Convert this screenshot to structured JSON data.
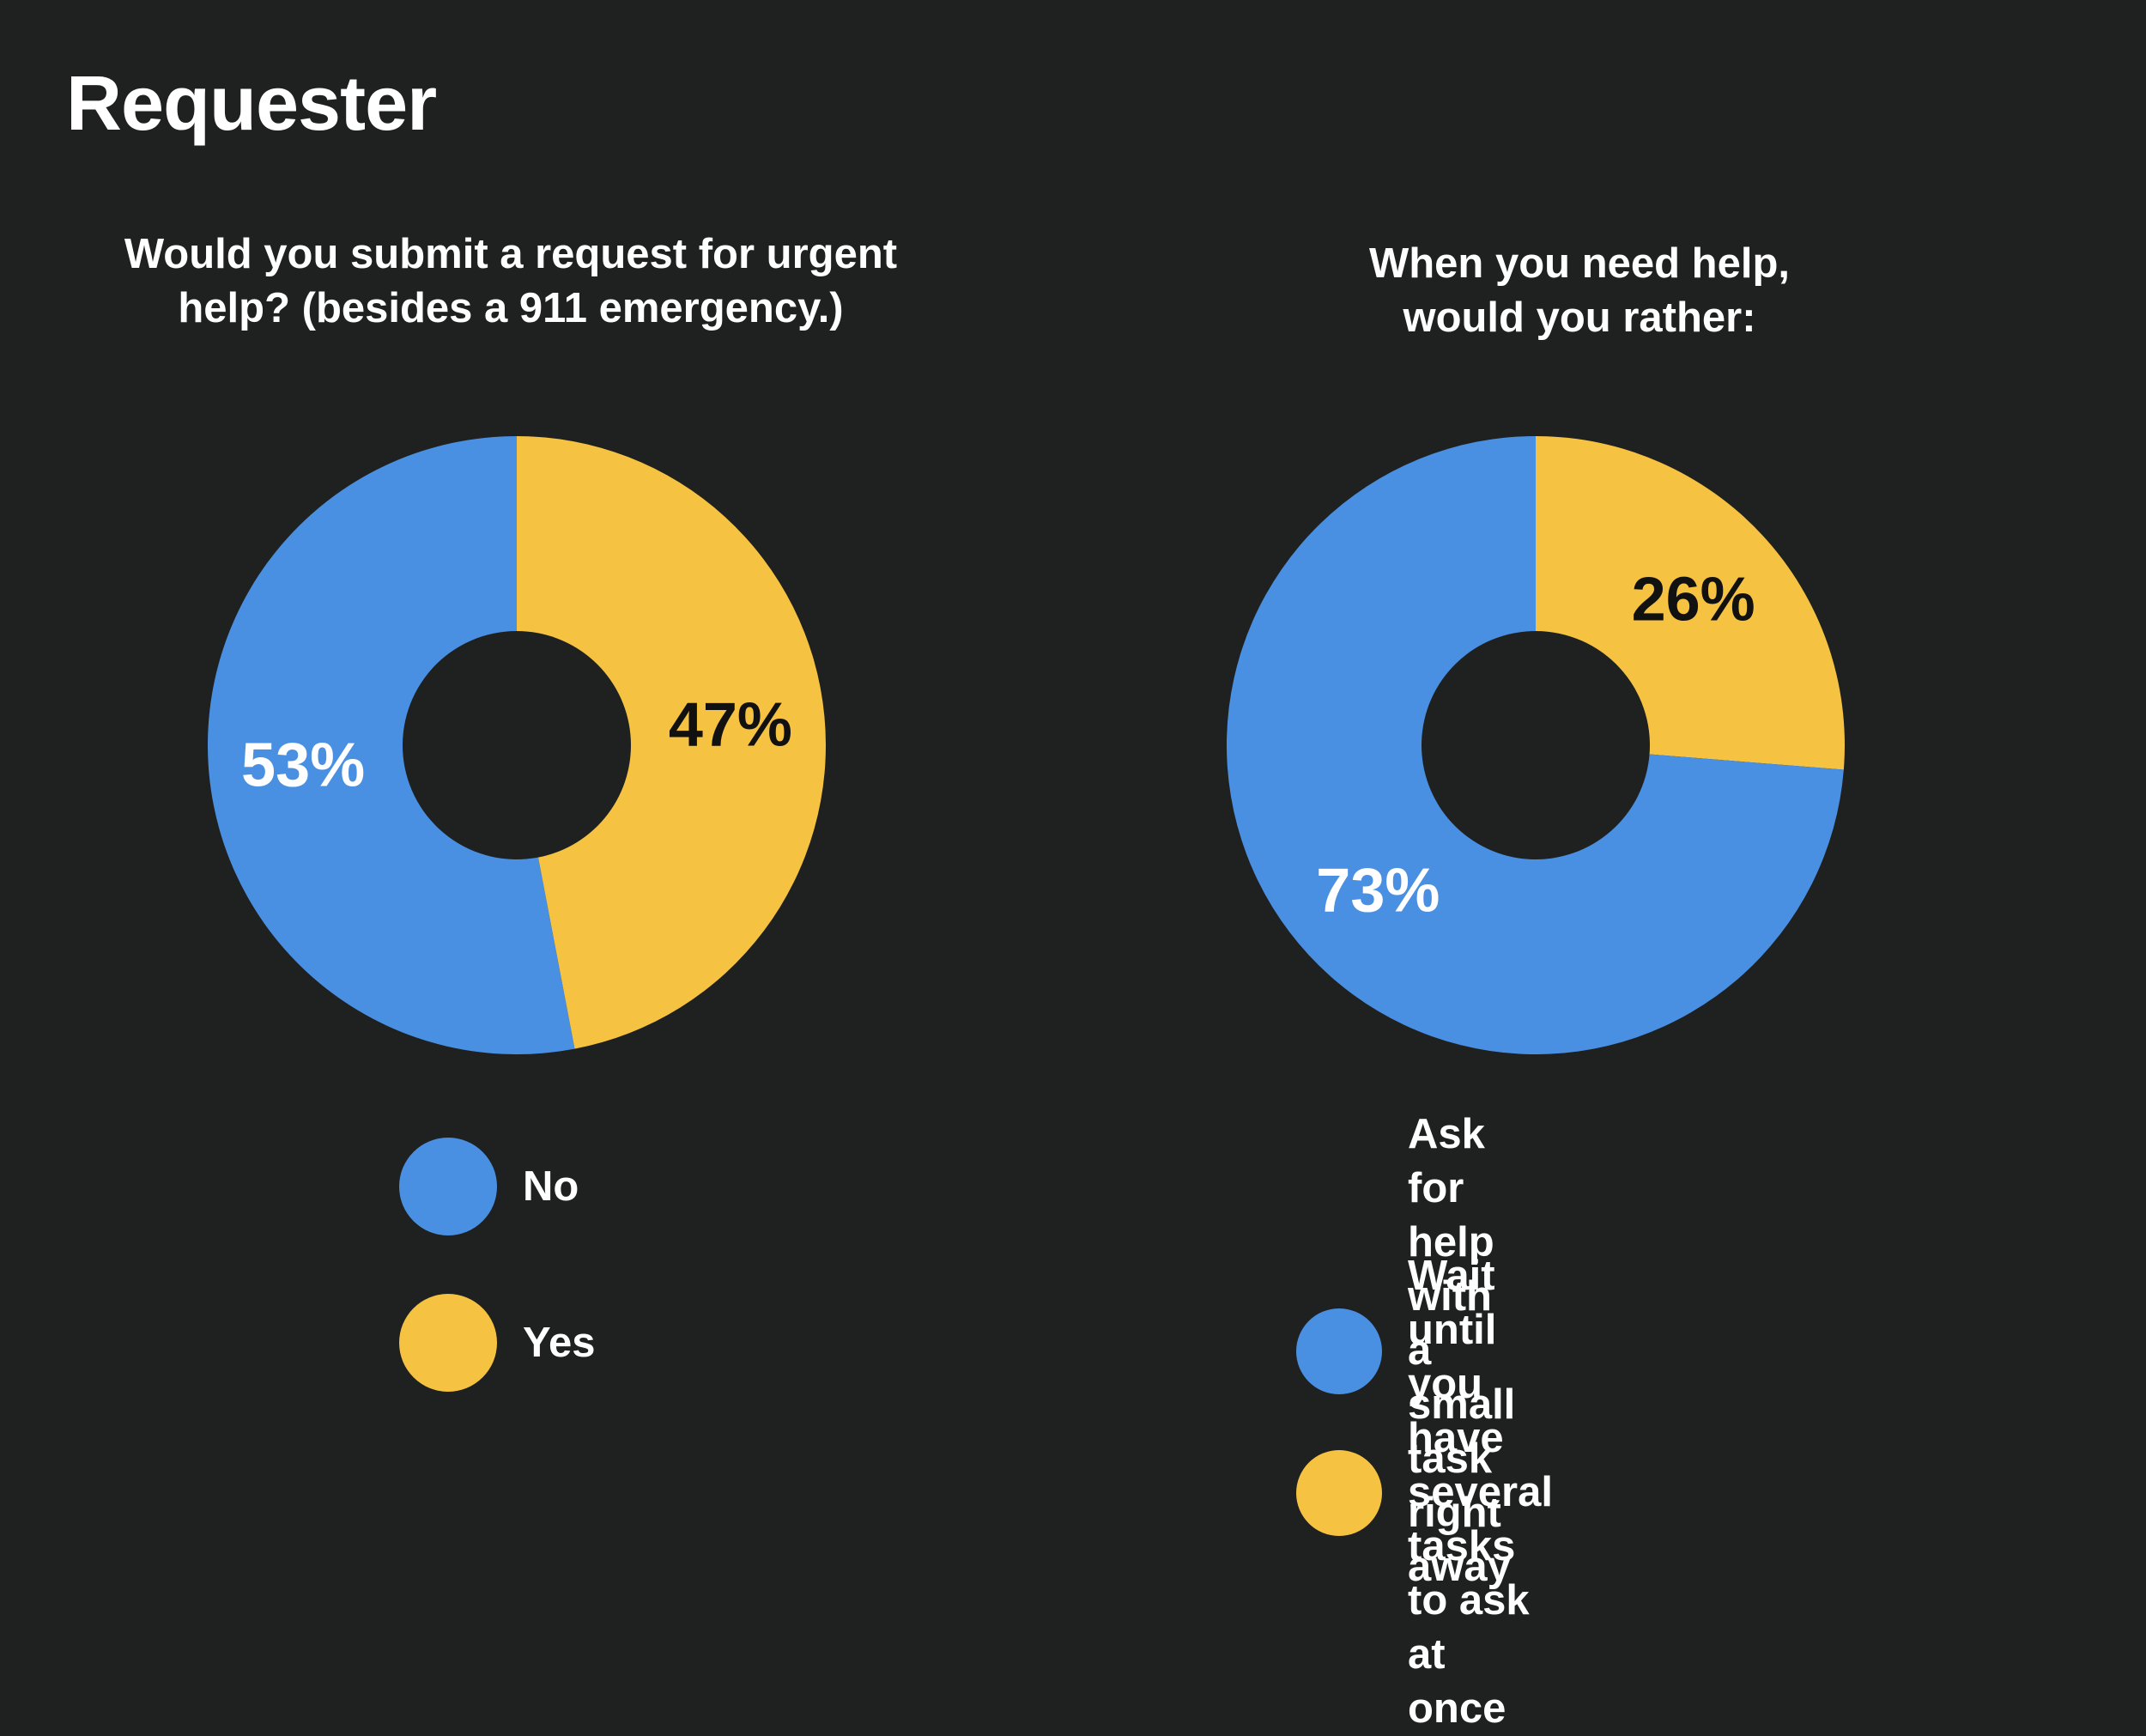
{
  "page": {
    "title": "Requester"
  },
  "colors": {
    "background": "#1f2020",
    "blue": "#4a90e2",
    "yellow": "#f5c242"
  },
  "chart_data": [
    {
      "type": "pie",
      "title": "Would you submit a request for urgent\nhelp? (besides a 911 emergency.)",
      "slices": [
        {
          "label": "Yes",
          "value": 47,
          "display": "47%",
          "color": "#f5c242"
        },
        {
          "label": "No",
          "value": 53,
          "display": "53%",
          "color": "#4a90e2"
        }
      ],
      "legend": [
        {
          "label": "No",
          "color": "#4a90e2"
        },
        {
          "label": "Yes",
          "color": "#f5c242"
        }
      ],
      "legend_position": "bottom"
    },
    {
      "type": "pie",
      "title": "When you need help,\nwould you rather:",
      "slices": [
        {
          "label": "Wait until you have several\ntasks to ask at once",
          "value": 26,
          "display": "26%",
          "color": "#f5c242"
        },
        {
          "label": "Ask for help with a\nsmall task right away",
          "value": 73,
          "display": "73%",
          "color": "#4a90e2"
        }
      ],
      "legend": [
        {
          "label": "Ask for help with a\nsmall task right away",
          "color": "#4a90e2"
        },
        {
          "label": "Wait until you have several\ntasks to ask at once",
          "color": "#f5c242"
        }
      ],
      "legend_position": "bottom"
    }
  ]
}
